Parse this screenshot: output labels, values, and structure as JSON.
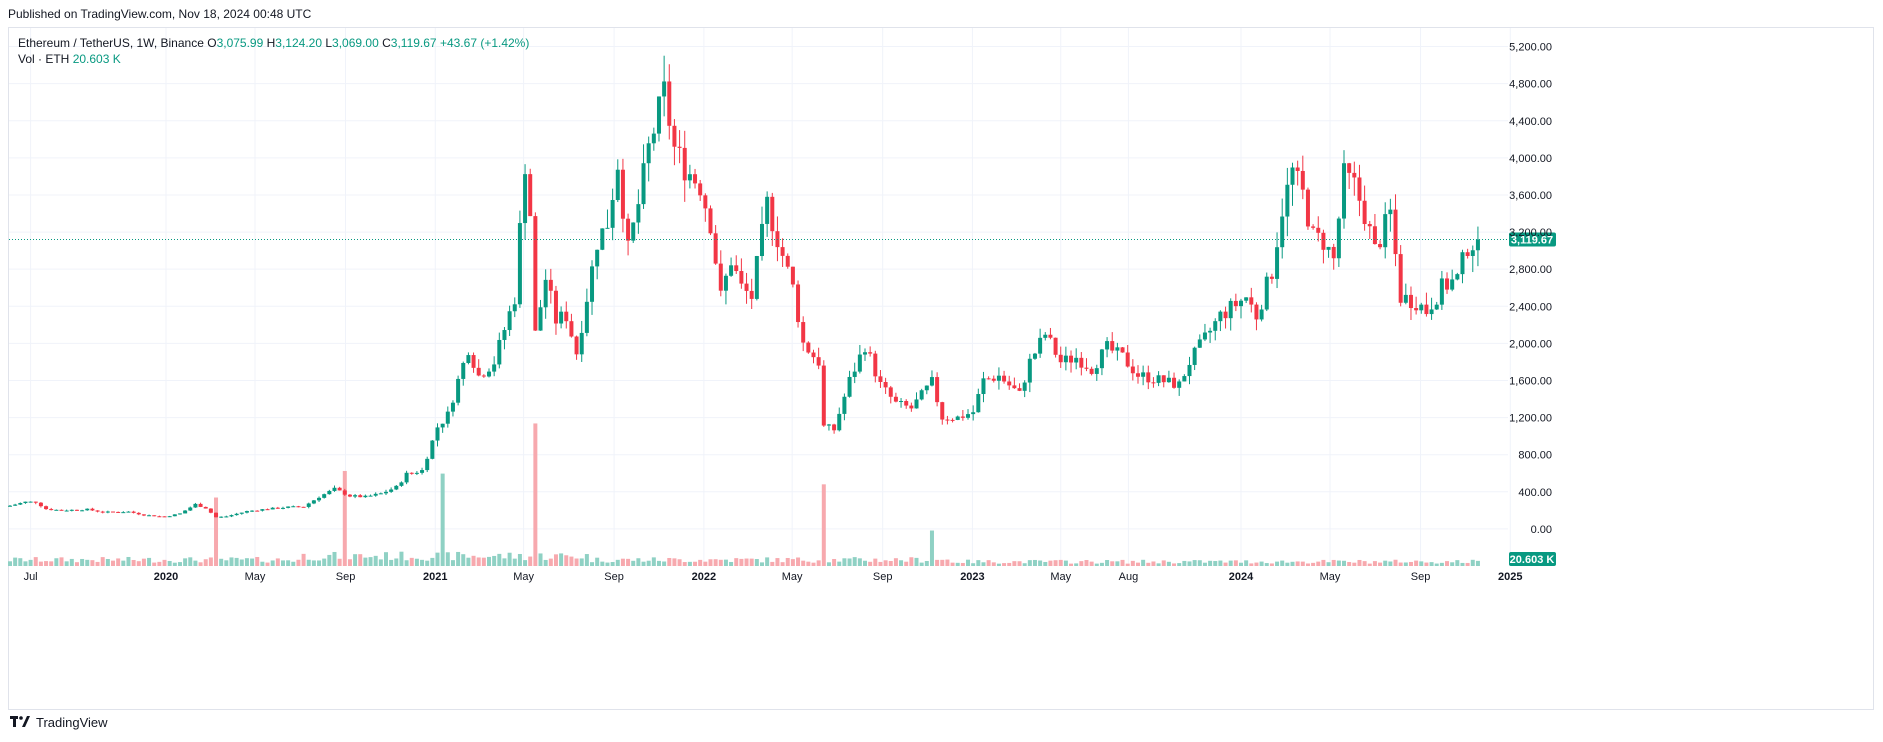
{
  "published": "Published on TradingView.com, Nov 18, 2024 00:48 UTC",
  "legend": {
    "symbol": "Ethereum / TetherUS, 1W, Binance",
    "o_label": "O",
    "o": "3,075.99",
    "h_label": "H",
    "h": "3,124.20",
    "l_label": "L",
    "l": "3,069.00",
    "c_label": "C",
    "c": "3,119.67",
    "change": "+43.67 (+1.42%)",
    "vol_label": "Vol · ETH",
    "vol": "20.603 K"
  },
  "footer": {
    "brand": "TradingView",
    "logo": "tradingview-logo-icon"
  },
  "colors": {
    "up": "#089981",
    "down": "#f23645",
    "upVol": "#8fd1c4",
    "downVol": "#f7a9ae",
    "grid": "#f0f3fa",
    "axisText": "#131722"
  },
  "chart_data": {
    "type": "candlestick",
    "title": "Ethereum / TetherUS, 1W, Binance",
    "y_ticks": [
      "5,200.00",
      "4,800.00",
      "4,400.00",
      "4,000.00",
      "3,600.00",
      "3,200.00",
      "2,800.00",
      "2,400.00",
      "2,000.00",
      "1,600.00",
      "1,200.00",
      "800.00",
      "400.00",
      "0.00"
    ],
    "y_range": [
      -400,
      5400
    ],
    "x_ticks": [
      "Jul",
      "2020",
      "May",
      "Sep",
      "2021",
      "May",
      "Sep",
      "2022",
      "May",
      "Sep",
      "2023",
      "May",
      "Aug",
      "2024",
      "May",
      "Sep",
      "2025"
    ],
    "bold_x_ticks": [
      "2020",
      "2021",
      "2022",
      "2023",
      "2024",
      "2025"
    ],
    "last_price_label": "3,119.67",
    "last_price": 3119.67,
    "volume_label": "20.603 K",
    "close_path": [
      [
        "2019-06-03",
        250
      ],
      [
        "2019-06-24",
        290
      ],
      [
        "2019-07-08",
        290
      ],
      [
        "2019-07-22",
        215
      ],
      [
        "2019-08-12",
        200
      ],
      [
        "2019-09-16",
        210
      ],
      [
        "2019-10-07",
        180
      ],
      [
        "2019-11-11",
        185
      ],
      [
        "2019-12-02",
        150
      ],
      [
        "2019-12-30",
        130
      ],
      [
        "2020-01-20",
        165
      ],
      [
        "2020-02-10",
        265
      ],
      [
        "2020-02-24",
        225
      ],
      [
        "2020-03-09",
        125
      ],
      [
        "2020-03-23",
        135
      ],
      [
        "2020-04-20",
        190
      ],
      [
        "2020-05-11",
        210
      ],
      [
        "2020-06-15",
        235
      ],
      [
        "2020-07-06",
        240
      ],
      [
        "2020-07-27",
        345
      ],
      [
        "2020-08-17",
        430
      ],
      [
        "2020-09-07",
        355
      ],
      [
        "2020-09-28",
        345
      ],
      [
        "2020-10-19",
        380
      ],
      [
        "2020-11-09",
        450
      ],
      [
        "2020-11-23",
        590
      ],
      [
        "2020-12-14",
        630
      ],
      [
        "2021-01-04",
        1100
      ],
      [
        "2021-01-18",
        1230
      ],
      [
        "2021-02-01",
        1600
      ],
      [
        "2021-02-15",
        1950
      ],
      [
        "2021-03-01",
        1650
      ],
      [
        "2021-03-22",
        1800
      ],
      [
        "2021-04-05",
        2150
      ],
      [
        "2021-04-19",
        2500
      ],
      [
        "2021-05-03",
        3950
      ],
      [
        "2021-05-10",
        3400
      ],
      [
        "2021-05-17",
        2100
      ],
      [
        "2021-05-31",
        2700
      ],
      [
        "2021-06-14",
        2250
      ],
      [
        "2021-06-28",
        2300
      ],
      [
        "2021-07-12",
        1900
      ],
      [
        "2021-07-26",
        2500
      ],
      [
        "2021-08-09",
        3100
      ],
      [
        "2021-08-23",
        3300
      ],
      [
        "2021-09-06",
        3950
      ],
      [
        "2021-09-20",
        3000
      ],
      [
        "2021-10-04",
        3500
      ],
      [
        "2021-10-18",
        4100
      ],
      [
        "2021-11-08",
        4700
      ],
      [
        "2021-11-22",
        4100
      ],
      [
        "2021-12-06",
        3900
      ],
      [
        "2021-12-27",
        3700
      ],
      [
        "2022-01-10",
        3300
      ],
      [
        "2022-01-24",
        2500
      ],
      [
        "2022-02-07",
        2900
      ],
      [
        "2022-02-21",
        2600
      ],
      [
        "2022-03-07",
        2500
      ],
      [
        "2022-03-28",
        3500
      ],
      [
        "2022-04-18",
        2950
      ],
      [
        "2022-05-02",
        2600
      ],
      [
        "2022-05-16",
        2000
      ],
      [
        "2022-06-06",
        1800
      ],
      [
        "2022-06-13",
        1100
      ],
      [
        "2022-06-27",
        1070
      ],
      [
        "2022-07-18",
        1600
      ],
      [
        "2022-08-08",
        1980
      ],
      [
        "2022-08-29",
        1550
      ],
      [
        "2022-09-19",
        1350
      ],
      [
        "2022-10-10",
        1300
      ],
      [
        "2022-11-07",
        1580
      ],
      [
        "2022-11-21",
        1200
      ],
      [
        "2022-12-12",
        1200
      ],
      [
        "2023-01-02",
        1260
      ],
      [
        "2023-01-16",
        1600
      ],
      [
        "2023-02-06",
        1650
      ],
      [
        "2023-03-06",
        1450
      ],
      [
        "2023-03-20",
        1800
      ],
      [
        "2023-04-10",
        2100
      ],
      [
        "2023-05-01",
        1800
      ],
      [
        "2023-05-22",
        1850
      ],
      [
        "2023-06-12",
        1730
      ],
      [
        "2023-07-03",
        1950
      ],
      [
        "2023-07-24",
        1850
      ],
      [
        "2023-08-14",
        1660
      ],
      [
        "2023-09-04",
        1620
      ],
      [
        "2023-10-09",
        1550
      ],
      [
        "2023-10-23",
        1800
      ],
      [
        "2023-11-13",
        2050
      ],
      [
        "2023-12-04",
        2300
      ],
      [
        "2024-01-08",
        2500
      ],
      [
        "2024-01-22",
        2300
      ],
      [
        "2024-02-12",
        2780
      ],
      [
        "2024-02-26",
        3450
      ],
      [
        "2024-03-11",
        3850
      ],
      [
        "2024-03-25",
        3600
      ],
      [
        "2024-04-08",
        3150
      ],
      [
        "2024-04-22",
        3100
      ],
      [
        "2024-05-06",
        2900
      ],
      [
        "2024-05-20",
        3800
      ],
      [
        "2024-06-03",
        3700
      ],
      [
        "2024-06-17",
        3400
      ],
      [
        "2024-07-01",
        3000
      ],
      [
        "2024-07-22",
        3400
      ],
      [
        "2024-08-05",
        2500
      ],
      [
        "2024-08-26",
        2450
      ],
      [
        "2024-09-09",
        2350
      ],
      [
        "2024-09-30",
        2600
      ],
      [
        "2024-10-21",
        2700
      ],
      [
        "2024-11-04",
        3050
      ],
      [
        "2024-11-11",
        3080
      ],
      [
        "2024-11-18",
        3119.67
      ]
    ],
    "volume_spikes": [
      [
        "2020-03-09",
        830
      ],
      [
        "2020-08-31",
        720
      ],
      [
        "2021-01-11",
        700
      ],
      [
        "2021-05-17",
        1080
      ],
      [
        "2022-06-13",
        990
      ],
      [
        "2022-11-07",
        430
      ],
      [
        "2024-08-05",
        60
      ]
    ]
  }
}
